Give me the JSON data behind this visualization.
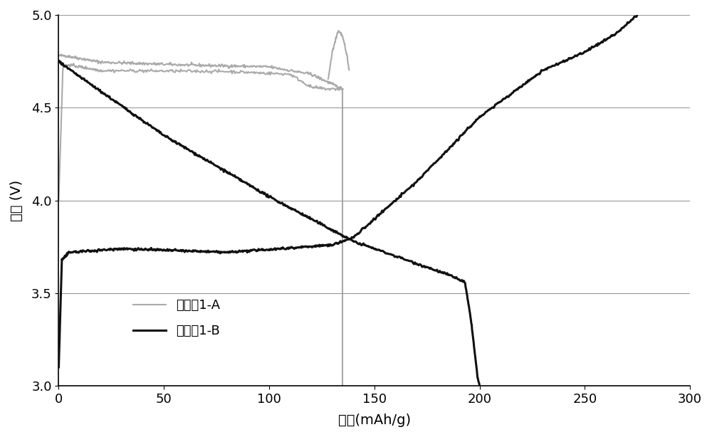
{
  "xlabel": "容量(mAh/g)",
  "ylabel": "电压 (V)",
  "xlim": [
    0,
    300
  ],
  "ylim": [
    3.0,
    5.0
  ],
  "xticks": [
    0,
    50,
    100,
    150,
    200,
    250,
    300
  ],
  "yticks": [
    3.0,
    3.5,
    4.0,
    4.5,
    5.0
  ],
  "color_A": "#aaaaaa",
  "color_B": "#111111",
  "legend_A": "对比例1-A",
  "legend_B": "对比例1-B",
  "background": "#ffffff",
  "grid_color": "#999999",
  "linewidth_A": 1.5,
  "linewidth_B": 2.2
}
